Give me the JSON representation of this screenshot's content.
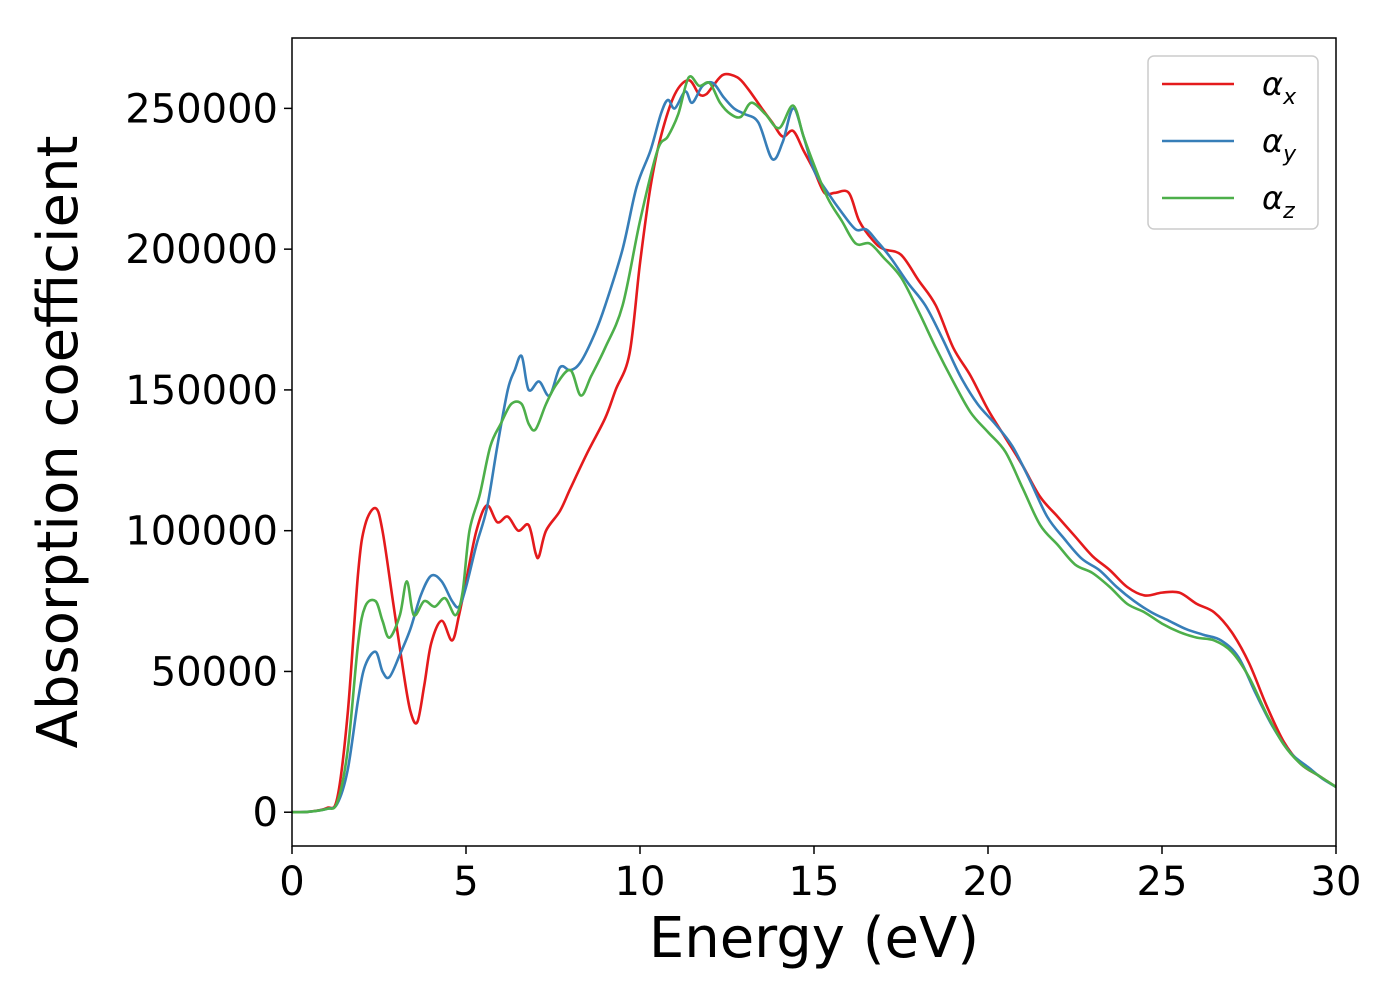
{
  "chart_data": {
    "type": "line",
    "title": "",
    "xlabel": "Energy (eV)",
    "ylabel": "Absorption coefficient",
    "xlim": [
      0,
      30
    ],
    "ylim": [
      -12000,
      275000
    ],
    "xticks": [
      0,
      5,
      10,
      15,
      20,
      25,
      30
    ],
    "yticks": [
      0,
      50000,
      100000,
      150000,
      200000,
      250000
    ],
    "grid": false,
    "legend_position": "top-right",
    "series": [
      {
        "name": "α",
        "subscript": "x",
        "color": "#e41a1c",
        "points": [
          [
            0,
            0
          ],
          [
            0.5,
            200
          ],
          [
            1.0,
            1500
          ],
          [
            1.3,
            5000
          ],
          [
            1.6,
            35000
          ],
          [
            1.9,
            85000
          ],
          [
            2.1,
            102000
          ],
          [
            2.4,
            108000
          ],
          [
            2.6,
            100000
          ],
          [
            2.9,
            75000
          ],
          [
            3.2,
            50000
          ],
          [
            3.4,
            36000
          ],
          [
            3.6,
            32000
          ],
          [
            3.8,
            45000
          ],
          [
            4.0,
            60000
          ],
          [
            4.3,
            68000
          ],
          [
            4.6,
            61000
          ],
          [
            4.8,
            70000
          ],
          [
            5.0,
            82000
          ],
          [
            5.3,
            100000
          ],
          [
            5.6,
            109000
          ],
          [
            5.9,
            103000
          ],
          [
            6.2,
            105000
          ],
          [
            6.5,
            100000
          ],
          [
            6.8,
            102000
          ],
          [
            7.0,
            92000
          ],
          [
            7.1,
            91000
          ],
          [
            7.3,
            100000
          ],
          [
            7.7,
            107000
          ],
          [
            8.0,
            115000
          ],
          [
            8.5,
            128000
          ],
          [
            9.0,
            140000
          ],
          [
            9.3,
            150000
          ],
          [
            9.7,
            163000
          ],
          [
            10.0,
            195000
          ],
          [
            10.3,
            222000
          ],
          [
            10.6,
            240000
          ],
          [
            11.0,
            255000
          ],
          [
            11.4,
            260000
          ],
          [
            11.7,
            255000
          ],
          [
            11.9,
            255000
          ],
          [
            12.1,
            258000
          ],
          [
            12.4,
            262000
          ],
          [
            12.8,
            261000
          ],
          [
            13.1,
            257000
          ],
          [
            13.5,
            250000
          ],
          [
            13.8,
            245000
          ],
          [
            14.1,
            240000
          ],
          [
            14.4,
            242000
          ],
          [
            14.7,
            235000
          ],
          [
            15.0,
            228000
          ],
          [
            15.3,
            220000
          ],
          [
            15.6,
            220000
          ],
          [
            16.0,
            220000
          ],
          [
            16.3,
            210000
          ],
          [
            16.7,
            203000
          ],
          [
            17.0,
            200000
          ],
          [
            17.5,
            198000
          ],
          [
            18.0,
            189000
          ],
          [
            18.5,
            180000
          ],
          [
            19.0,
            165000
          ],
          [
            19.5,
            155000
          ],
          [
            20.0,
            143000
          ],
          [
            20.5,
            133000
          ],
          [
            21.0,
            123000
          ],
          [
            21.5,
            112000
          ],
          [
            22.0,
            105000
          ],
          [
            22.5,
            98000
          ],
          [
            23.0,
            91000
          ],
          [
            23.5,
            86000
          ],
          [
            24.0,
            80000
          ],
          [
            24.5,
            77000
          ],
          [
            25.0,
            78000
          ],
          [
            25.5,
            78000
          ],
          [
            26.0,
            74000
          ],
          [
            26.5,
            71000
          ],
          [
            27.0,
            64000
          ],
          [
            27.5,
            53000
          ],
          [
            28.0,
            38000
          ],
          [
            28.5,
            25000
          ],
          [
            29.0,
            17000
          ],
          [
            29.5,
            13000
          ],
          [
            30.0,
            9000
          ]
        ]
      },
      {
        "name": "α",
        "subscript": "y",
        "color": "#377eb8",
        "points": [
          [
            0,
            0
          ],
          [
            0.5,
            200
          ],
          [
            1.0,
            1200
          ],
          [
            1.3,
            3000
          ],
          [
            1.6,
            15000
          ],
          [
            1.9,
            40000
          ],
          [
            2.1,
            52000
          ],
          [
            2.4,
            57000
          ],
          [
            2.6,
            50000
          ],
          [
            2.8,
            48000
          ],
          [
            3.1,
            56000
          ],
          [
            3.4,
            65000
          ],
          [
            3.7,
            77000
          ],
          [
            4.0,
            84000
          ],
          [
            4.3,
            82000
          ],
          [
            4.6,
            75000
          ],
          [
            4.8,
            73000
          ],
          [
            5.0,
            80000
          ],
          [
            5.3,
            95000
          ],
          [
            5.6,
            108000
          ],
          [
            5.9,
            130000
          ],
          [
            6.2,
            150000
          ],
          [
            6.4,
            157000
          ],
          [
            6.6,
            162000
          ],
          [
            6.8,
            150000
          ],
          [
            7.1,
            153000
          ],
          [
            7.4,
            148000
          ],
          [
            7.7,
            158000
          ],
          [
            8.0,
            157000
          ],
          [
            8.3,
            160000
          ],
          [
            8.7,
            170000
          ],
          [
            9.0,
            180000
          ],
          [
            9.5,
            200000
          ],
          [
            9.9,
            222000
          ],
          [
            10.3,
            235000
          ],
          [
            10.6,
            248000
          ],
          [
            10.8,
            253000
          ],
          [
            11.0,
            250000
          ],
          [
            11.3,
            256000
          ],
          [
            11.5,
            252000
          ],
          [
            11.8,
            258000
          ],
          [
            12.1,
            259000
          ],
          [
            12.4,
            254000
          ],
          [
            12.7,
            250000
          ],
          [
            13.0,
            248000
          ],
          [
            13.4,
            245000
          ],
          [
            13.8,
            232000
          ],
          [
            14.1,
            238000
          ],
          [
            14.4,
            250000
          ],
          [
            14.7,
            240000
          ],
          [
            15.0,
            228000
          ],
          [
            15.4,
            220000
          ],
          [
            15.8,
            213000
          ],
          [
            16.2,
            207000
          ],
          [
            16.5,
            207000
          ],
          [
            16.8,
            203000
          ],
          [
            17.2,
            197000
          ],
          [
            17.7,
            188000
          ],
          [
            18.2,
            180000
          ],
          [
            18.7,
            168000
          ],
          [
            19.2,
            155000
          ],
          [
            19.7,
            145000
          ],
          [
            20.2,
            138000
          ],
          [
            20.7,
            130000
          ],
          [
            21.2,
            118000
          ],
          [
            21.7,
            105000
          ],
          [
            22.2,
            97000
          ],
          [
            22.7,
            90000
          ],
          [
            23.2,
            86000
          ],
          [
            23.7,
            80000
          ],
          [
            24.2,
            75000
          ],
          [
            24.7,
            71000
          ],
          [
            25.2,
            68000
          ],
          [
            25.7,
            65000
          ],
          [
            26.2,
            63000
          ],
          [
            26.7,
            61000
          ],
          [
            27.2,
            55000
          ],
          [
            27.7,
            42000
          ],
          [
            28.2,
            30000
          ],
          [
            28.7,
            21000
          ],
          [
            29.2,
            16000
          ],
          [
            29.6,
            12000
          ],
          [
            30.0,
            9000
          ]
        ]
      },
      {
        "name": "α",
        "subscript": "z",
        "color": "#4daf4a",
        "points": [
          [
            0,
            0
          ],
          [
            0.5,
            200
          ],
          [
            1.0,
            1200
          ],
          [
            1.3,
            3500
          ],
          [
            1.6,
            22000
          ],
          [
            1.9,
            60000
          ],
          [
            2.1,
            73000
          ],
          [
            2.4,
            75000
          ],
          [
            2.6,
            68000
          ],
          [
            2.8,
            62000
          ],
          [
            3.1,
            70000
          ],
          [
            3.3,
            82000
          ],
          [
            3.5,
            70000
          ],
          [
            3.8,
            75000
          ],
          [
            4.1,
            73000
          ],
          [
            4.4,
            76000
          ],
          [
            4.7,
            70000
          ],
          [
            4.9,
            78000
          ],
          [
            5.1,
            100000
          ],
          [
            5.4,
            113000
          ],
          [
            5.7,
            130000
          ],
          [
            6.0,
            138000
          ],
          [
            6.3,
            145000
          ],
          [
            6.6,
            145000
          ],
          [
            6.8,
            138000
          ],
          [
            7.0,
            136000
          ],
          [
            7.3,
            145000
          ],
          [
            7.6,
            152000
          ],
          [
            8.0,
            157000
          ],
          [
            8.3,
            148000
          ],
          [
            8.6,
            155000
          ],
          [
            9.0,
            165000
          ],
          [
            9.5,
            180000
          ],
          [
            10.0,
            210000
          ],
          [
            10.5,
            235000
          ],
          [
            10.8,
            240000
          ],
          [
            11.1,
            248000
          ],
          [
            11.4,
            261000
          ],
          [
            11.7,
            258000
          ],
          [
            12.0,
            259000
          ],
          [
            12.3,
            252000
          ],
          [
            12.6,
            248000
          ],
          [
            12.9,
            247000
          ],
          [
            13.2,
            252000
          ],
          [
            13.6,
            248000
          ],
          [
            14.0,
            243000
          ],
          [
            14.4,
            251000
          ],
          [
            14.7,
            240000
          ],
          [
            15.0,
            230000
          ],
          [
            15.4,
            218000
          ],
          [
            15.8,
            210000
          ],
          [
            16.2,
            202000
          ],
          [
            16.6,
            202000
          ],
          [
            17.0,
            197000
          ],
          [
            17.5,
            190000
          ],
          [
            18.0,
            178000
          ],
          [
            18.5,
            165000
          ],
          [
            19.0,
            153000
          ],
          [
            19.5,
            142000
          ],
          [
            20.0,
            135000
          ],
          [
            20.5,
            128000
          ],
          [
            21.0,
            115000
          ],
          [
            21.5,
            102000
          ],
          [
            22.0,
            95000
          ],
          [
            22.5,
            88000
          ],
          [
            23.0,
            85000
          ],
          [
            23.5,
            80000
          ],
          [
            24.0,
            74000
          ],
          [
            24.5,
            71000
          ],
          [
            25.0,
            67000
          ],
          [
            25.5,
            64000
          ],
          [
            26.0,
            62000
          ],
          [
            26.5,
            61000
          ],
          [
            27.0,
            57000
          ],
          [
            27.5,
            48000
          ],
          [
            28.0,
            35000
          ],
          [
            28.5,
            24000
          ],
          [
            29.0,
            17000
          ],
          [
            29.5,
            13000
          ],
          [
            30.0,
            9000
          ]
        ]
      }
    ]
  }
}
